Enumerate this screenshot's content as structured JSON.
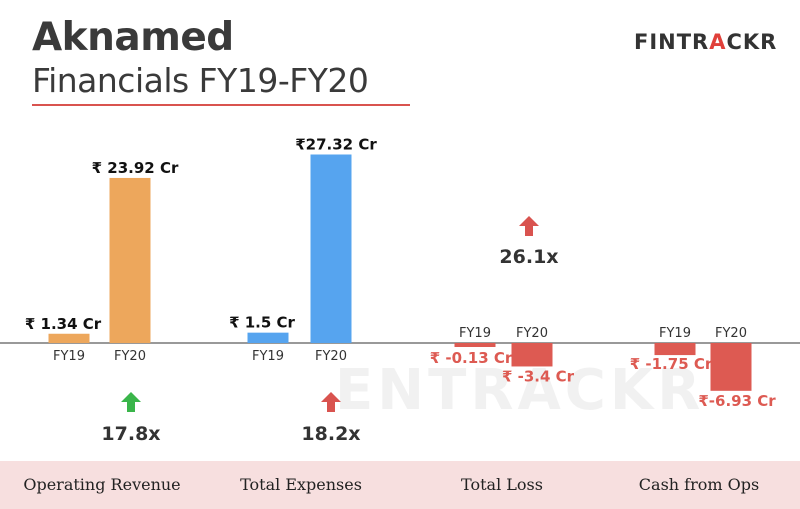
{
  "header": {
    "title": "Aknamed",
    "subtitle": "Financials FY19-FY20",
    "brand_prefix": "FINTR",
    "brand_accent": "A",
    "brand_suffix": "CKR",
    "watermark": "ENTRACKR"
  },
  "colors": {
    "revenue": "#eda75c",
    "expenses": "#56a4ef",
    "negative": "#dd5a52",
    "arrow_up_green": "#3ab54a",
    "arrow_red": "#d9534f",
    "footer_bg": "#f7dfdf"
  },
  "chart_data": {
    "type": "bar",
    "unit": "Cr",
    "groups": [
      {
        "category": "Operating Revenue",
        "color": "#eda75c",
        "bars": [
          {
            "x": "FY19",
            "value": 1.34,
            "label": "₹ 1.34 Cr"
          },
          {
            "x": "FY20",
            "value": 23.92,
            "label": "₹ 23.92 Cr"
          }
        ],
        "growth": "17.8x",
        "arrow": "up-green-icon"
      },
      {
        "category": "Total Expenses",
        "color": "#56a4ef",
        "bars": [
          {
            "x": "FY19",
            "value": 1.5,
            "label": "₹  1.5 Cr"
          },
          {
            "x": "FY20",
            "value": 27.32,
            "label": "₹27.32 Cr"
          }
        ],
        "growth": "18.2x",
        "arrow": "up-red-icon"
      },
      {
        "category": "Total Loss",
        "color": "#dd5a52",
        "bars": [
          {
            "x": "FY19",
            "value": -0.13,
            "label": "₹ -0.13 Cr"
          },
          {
            "x": "FY20",
            "value": -3.4,
            "label": "₹  -3.4 Cr"
          }
        ],
        "growth": "26.1x",
        "arrow": "up-red-icon"
      },
      {
        "category": "Cash from Ops",
        "color": "#dd5a52",
        "bars": [
          {
            "x": "FY19",
            "value": -1.75,
            "label": "₹ -1.75 Cr"
          },
          {
            "x": "FY20",
            "value": -6.93,
            "label": "₹-6.93 Cr"
          }
        ]
      }
    ]
  }
}
